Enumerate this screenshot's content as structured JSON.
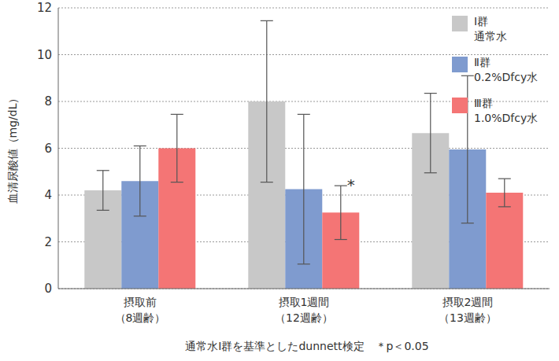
{
  "chart_data": {
    "type": "bar",
    "categories": [
      "摂取前\n（8週齢）",
      "摂取1週間\n（12週齢）",
      "摂取2週間\n（13週齢）"
    ],
    "series": [
      {
        "name": "Ⅰ群\n通常水",
        "color": "#c8c8c8",
        "values": [
          4.2,
          8.0,
          6.65
        ],
        "errors": [
          0.85,
          3.45,
          1.7
        ]
      },
      {
        "name": "Ⅱ群\n0.2%Dfcy水",
        "color": "#7f9bcf",
        "values": [
          4.6,
          4.25,
          5.95
        ],
        "errors": [
          1.5,
          3.2,
          3.15
        ]
      },
      {
        "name": "Ⅲ群\n1.0%Dfcy水",
        "color": "#f47575",
        "values": [
          6.0,
          3.25,
          4.1
        ],
        "errors": [
          1.45,
          1.15,
          0.6
        ]
      }
    ],
    "y_label": "血清尿酸値（mg/dL）",
    "ylim": [
      0,
      12
    ],
    "yticks": [
      0,
      2,
      4,
      6,
      8,
      10,
      12
    ],
    "grid": true,
    "legend": "upper right",
    "annotations": [
      {
        "text": "*",
        "series": 2,
        "category": 1
      }
    ],
    "footnote": "通常水Ⅰ群を基準としたdunnett検定　＊p＜0.05"
  }
}
